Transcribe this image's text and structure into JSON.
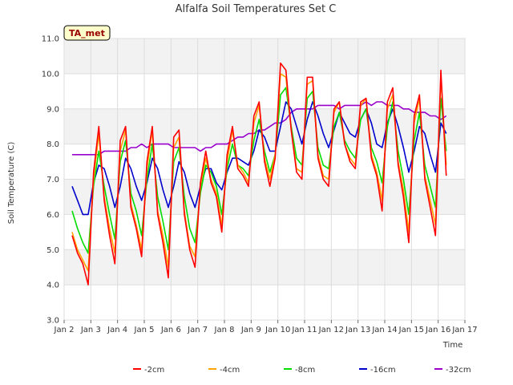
{
  "chart_data": {
    "type": "line",
    "title": "Alfalfa Soil Temperatures Set C",
    "xlabel": "Time",
    "ylabel": "Soil Temperature (C)",
    "badge": "TA_met",
    "ylim": [
      3.0,
      11.0
    ],
    "yticks": [
      "3.0",
      "4.0",
      "5.0",
      "6.0",
      "7.0",
      "8.0",
      "9.0",
      "10.0",
      "11.0"
    ],
    "xlim": [
      2,
      17
    ],
    "xticks": [
      {
        "value": 2,
        "label": "Jan 2"
      },
      {
        "value": 3,
        "label": "Jan 3"
      },
      {
        "value": 4,
        "label": "Jan 4"
      },
      {
        "value": 5,
        "label": "Jan 5"
      },
      {
        "value": 6,
        "label": "Jan 6"
      },
      {
        "value": 7,
        "label": "Jan 7"
      },
      {
        "value": 8,
        "label": "Jan 8"
      },
      {
        "value": 9,
        "label": "Jan 9"
      },
      {
        "value": 10,
        "label": "Jan 10"
      },
      {
        "value": 11,
        "label": "Jan 11"
      },
      {
        "value": 12,
        "label": "Jan 12"
      },
      {
        "value": 13,
        "label": "Jan 13"
      },
      {
        "value": 14,
        "label": "Jan 14"
      },
      {
        "value": 15,
        "label": "Jan 15"
      },
      {
        "value": 16,
        "label": "Jan 16"
      },
      {
        "value": 17,
        "label": "Jan 17"
      }
    ],
    "grid": true,
    "legend_position": "bottom",
    "x": [
      2.3,
      2.5,
      2.7,
      2.9,
      3.1,
      3.3,
      3.5,
      3.7,
      3.9,
      4.1,
      4.3,
      4.5,
      4.7,
      4.9,
      5.1,
      5.3,
      5.5,
      5.7,
      5.9,
      6.1,
      6.3,
      6.5,
      6.7,
      6.9,
      7.1,
      7.3,
      7.5,
      7.7,
      7.9,
      8.1,
      8.3,
      8.5,
      8.7,
      8.9,
      9.1,
      9.3,
      9.5,
      9.7,
      9.9,
      10.1,
      10.3,
      10.5,
      10.7,
      10.9,
      11.1,
      11.3,
      11.5,
      11.7,
      11.9,
      12.1,
      12.3,
      12.5,
      12.7,
      12.9,
      13.1,
      13.3,
      13.5,
      13.7,
      13.9,
      14.1,
      14.3,
      14.5,
      14.7,
      14.9,
      15.1,
      15.3,
      15.5,
      15.7,
      15.9,
      16.1,
      16.3
    ],
    "series": [
      {
        "name": "-2cm",
        "color": "#ff0000",
        "values": [
          5.4,
          4.9,
          4.6,
          4.0,
          7.2,
          8.5,
          6.4,
          5.4,
          4.6,
          8.1,
          8.5,
          6.2,
          5.6,
          4.8,
          7.5,
          8.5,
          6.0,
          5.2,
          4.2,
          8.2,
          8.4,
          6.0,
          5.0,
          4.5,
          6.9,
          7.8,
          6.9,
          6.5,
          5.5,
          7.7,
          8.5,
          7.3,
          7.1,
          6.8,
          8.8,
          9.2,
          7.5,
          6.8,
          7.6,
          10.3,
          10.1,
          8.4,
          7.2,
          7.0,
          9.9,
          9.9,
          7.6,
          7.0,
          6.8,
          9.0,
          9.2,
          8.0,
          7.5,
          7.3,
          9.2,
          9.3,
          7.6,
          7.1,
          6.1,
          9.2,
          9.6,
          7.4,
          6.5,
          5.2,
          8.8,
          9.4,
          7.0,
          6.2,
          5.4,
          10.1,
          7.1
        ]
      },
      {
        "name": "-4cm",
        "color": "#ffa500",
        "values": [
          5.5,
          5.0,
          4.7,
          4.4,
          7.0,
          8.3,
          6.5,
          5.6,
          4.9,
          7.8,
          8.4,
          6.3,
          5.7,
          5.0,
          7.3,
          8.4,
          6.1,
          5.4,
          4.5,
          7.9,
          8.2,
          6.1,
          5.1,
          4.8,
          6.8,
          7.6,
          7.0,
          6.6,
          5.7,
          7.5,
          8.4,
          7.4,
          7.2,
          6.9,
          8.6,
          9.1,
          7.6,
          7.0,
          7.7,
          10.0,
          9.9,
          8.4,
          7.3,
          7.2,
          9.7,
          9.8,
          7.7,
          7.1,
          7.0,
          8.9,
          9.2,
          8.0,
          7.6,
          7.4,
          9.1,
          9.3,
          7.7,
          7.2,
          6.4,
          9.0,
          9.4,
          7.5,
          6.7,
          5.5,
          8.6,
          9.3,
          7.1,
          6.4,
          5.7,
          9.9,
          7.4
        ]
      },
      {
        "name": "-8cm",
        "color": "#00dd00",
        "values": [
          6.1,
          5.6,
          5.2,
          4.9,
          6.8,
          7.8,
          6.8,
          6.0,
          5.3,
          7.5,
          8.1,
          6.6,
          6.1,
          5.4,
          7.0,
          8.0,
          6.5,
          5.8,
          5.0,
          7.5,
          7.9,
          6.5,
          5.6,
          5.2,
          6.6,
          7.4,
          7.2,
          6.8,
          6.0,
          7.3,
          8.0,
          7.4,
          7.3,
          7.1,
          8.1,
          8.7,
          7.8,
          7.2,
          7.7,
          9.4,
          9.6,
          8.5,
          7.6,
          7.4,
          9.3,
          9.5,
          7.9,
          7.4,
          7.3,
          8.5,
          8.9,
          8.1,
          7.8,
          7.6,
          8.7,
          9.0,
          7.9,
          7.5,
          6.9,
          8.5,
          9.2,
          7.8,
          7.0,
          6.0,
          8.1,
          8.9,
          7.4,
          6.8,
          6.2,
          9.3,
          7.8
        ]
      },
      {
        "name": "-16cm",
        "color": "#0000cc",
        "values": [
          6.8,
          6.4,
          6.0,
          6.0,
          6.9,
          7.4,
          7.3,
          6.8,
          6.2,
          6.8,
          7.6,
          7.3,
          6.8,
          6.4,
          6.9,
          7.6,
          7.3,
          6.7,
          6.2,
          6.8,
          7.5,
          7.2,
          6.6,
          6.2,
          6.8,
          7.3,
          7.3,
          6.9,
          6.7,
          7.2,
          7.6,
          7.6,
          7.5,
          7.4,
          7.8,
          8.4,
          8.2,
          7.8,
          7.8,
          8.5,
          9.2,
          9.0,
          8.5,
          8.0,
          8.7,
          9.2,
          8.8,
          8.3,
          7.9,
          8.4,
          8.9,
          8.6,
          8.3,
          8.2,
          8.7,
          9.0,
          8.6,
          8.0,
          7.9,
          8.6,
          9.0,
          8.5,
          7.9,
          7.2,
          7.8,
          8.5,
          8.3,
          7.7,
          7.2,
          8.6,
          8.3
        ]
      },
      {
        "name": "-32cm",
        "color": "#9900cc",
        "values": [
          7.7,
          7.7,
          7.7,
          7.7,
          7.7,
          7.7,
          7.8,
          7.8,
          7.8,
          7.8,
          7.8,
          7.9,
          7.9,
          8.0,
          7.9,
          8.0,
          8.0,
          8.0,
          8.0,
          7.9,
          7.9,
          7.9,
          7.9,
          7.9,
          7.8,
          7.9,
          7.9,
          8.0,
          8.0,
          8.0,
          8.1,
          8.2,
          8.2,
          8.3,
          8.3,
          8.4,
          8.4,
          8.5,
          8.6,
          8.6,
          8.7,
          8.9,
          9.0,
          9.0,
          9.0,
          9.0,
          9.1,
          9.1,
          9.1,
          9.1,
          9.0,
          9.1,
          9.1,
          9.1,
          9.1,
          9.2,
          9.1,
          9.2,
          9.2,
          9.1,
          9.1,
          9.1,
          9.0,
          9.0,
          8.9,
          8.9,
          8.9,
          8.8,
          8.8,
          8.7,
          8.8
        ]
      }
    ]
  }
}
